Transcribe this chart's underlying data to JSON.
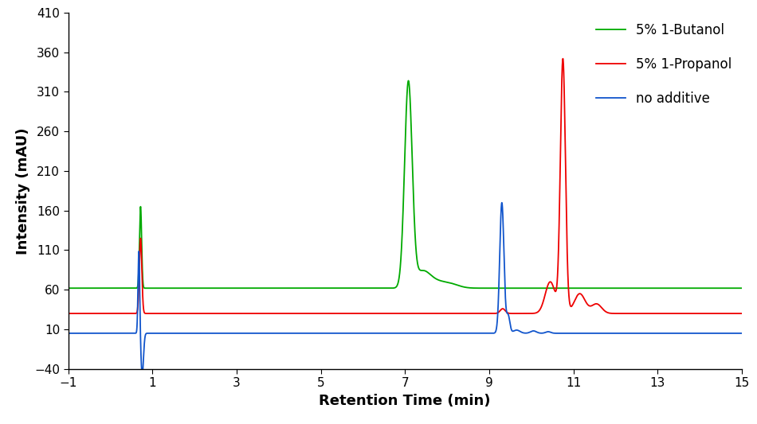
{
  "title": "",
  "xlabel": "Retention Time (min)",
  "ylabel": "Intensity (mAU)",
  "xlim": [
    -1,
    15
  ],
  "ylim": [
    -40,
    410
  ],
  "xticks": [
    -1,
    1,
    3,
    5,
    7,
    9,
    11,
    13,
    15
  ],
  "yticks": [
    -40,
    10,
    60,
    110,
    160,
    210,
    260,
    310,
    360,
    410
  ],
  "colors": {
    "green": "#00aa00",
    "red": "#ee0000",
    "blue": "#1155cc"
  },
  "legend": [
    {
      "label": "5% 1-Butanol",
      "color": "#00aa00"
    },
    {
      "label": "5% 1-Propanol",
      "color": "#ee0000"
    },
    {
      "label": "no additive",
      "color": "#1155cc"
    }
  ],
  "background_color": "#ffffff",
  "green_baseline": 62.0,
  "red_baseline": 30.0,
  "blue_baseline": 5.0
}
